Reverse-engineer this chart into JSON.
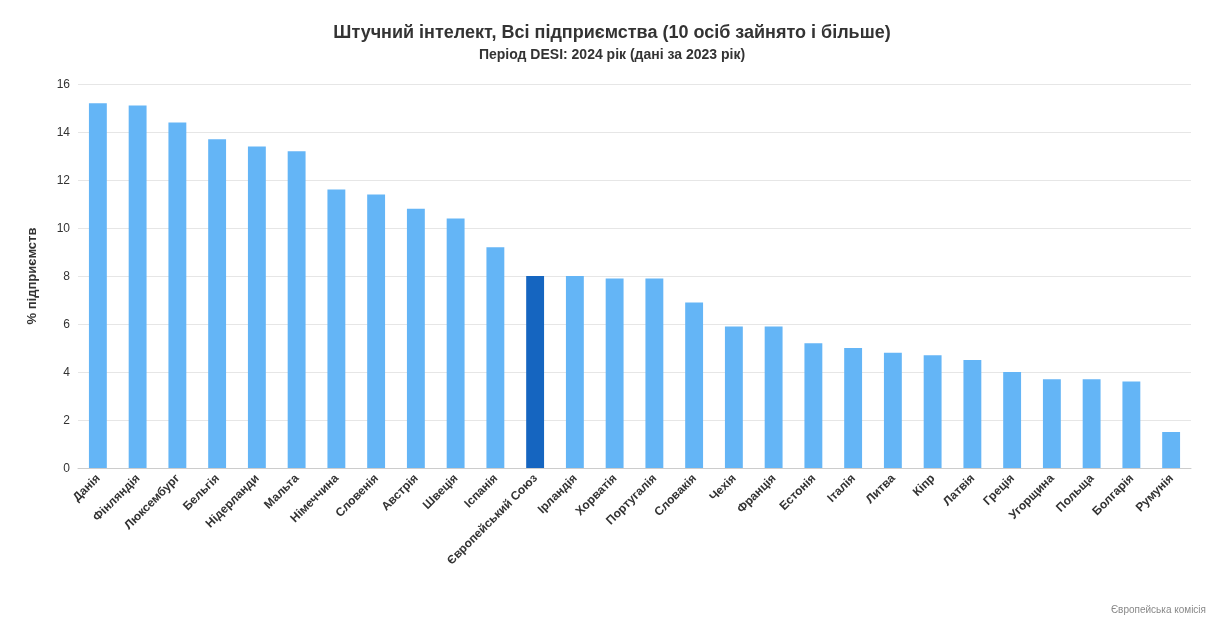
{
  "chart_data": {
    "type": "bar",
    "title": "Штучний інтелект, Всі підприємства (10 осіб зайнято і більше)",
    "subtitle": "Період DESI: 2024 рік (дані за 2023 рік)",
    "ylabel": "% підприємств",
    "annotations": [
      "Європейська комісія"
    ],
    "categories": [
      "Данія",
      "Фінляндія",
      "Люксембург",
      "Бельгія",
      "Нідерланди",
      "Мальта",
      "Німеччина",
      "Словенія",
      "Австрія",
      "Швеція",
      "Іспанія",
      "Європейський Союз",
      "Ірландія",
      "Хорватія",
      "Португалія",
      "Словакія",
      "Чехія",
      "Франція",
      "Естонія",
      "Італія",
      "Литва",
      "Кіпр",
      "Латвія",
      "Греція",
      "Угорщина",
      "Польща",
      "Болгарія",
      "Румунія"
    ],
    "values": [
      15.2,
      15.1,
      14.4,
      13.7,
      13.4,
      13.2,
      11.6,
      11.4,
      10.8,
      10.4,
      9.2,
      8.0,
      8.0,
      7.9,
      7.9,
      6.9,
      5.9,
      5.9,
      5.2,
      5.0,
      4.8,
      4.7,
      4.5,
      4.0,
      3.7,
      3.7,
      3.6,
      1.5
    ],
    "colors": [
      "#64b5f6",
      "#64b5f6",
      "#64b5f6",
      "#64b5f6",
      "#64b5f6",
      "#64b5f6",
      "#64b5f6",
      "#64b5f6",
      "#64b5f6",
      "#64b5f6",
      "#64b5f6",
      "#1565c0",
      "#64b5f6",
      "#64b5f6",
      "#64b5f6",
      "#64b5f6",
      "#64b5f6",
      "#64b5f6",
      "#64b5f6",
      "#64b5f6",
      "#64b5f6",
      "#64b5f6",
      "#64b5f6",
      "#64b5f6",
      "#64b5f6",
      "#64b5f6",
      "#64b5f6",
      "#64b5f6"
    ],
    "ylim": [
      0,
      16
    ],
    "yticks": [
      0,
      2,
      4,
      6,
      8,
      10,
      12,
      14,
      16
    ],
    "grid": "y"
  }
}
